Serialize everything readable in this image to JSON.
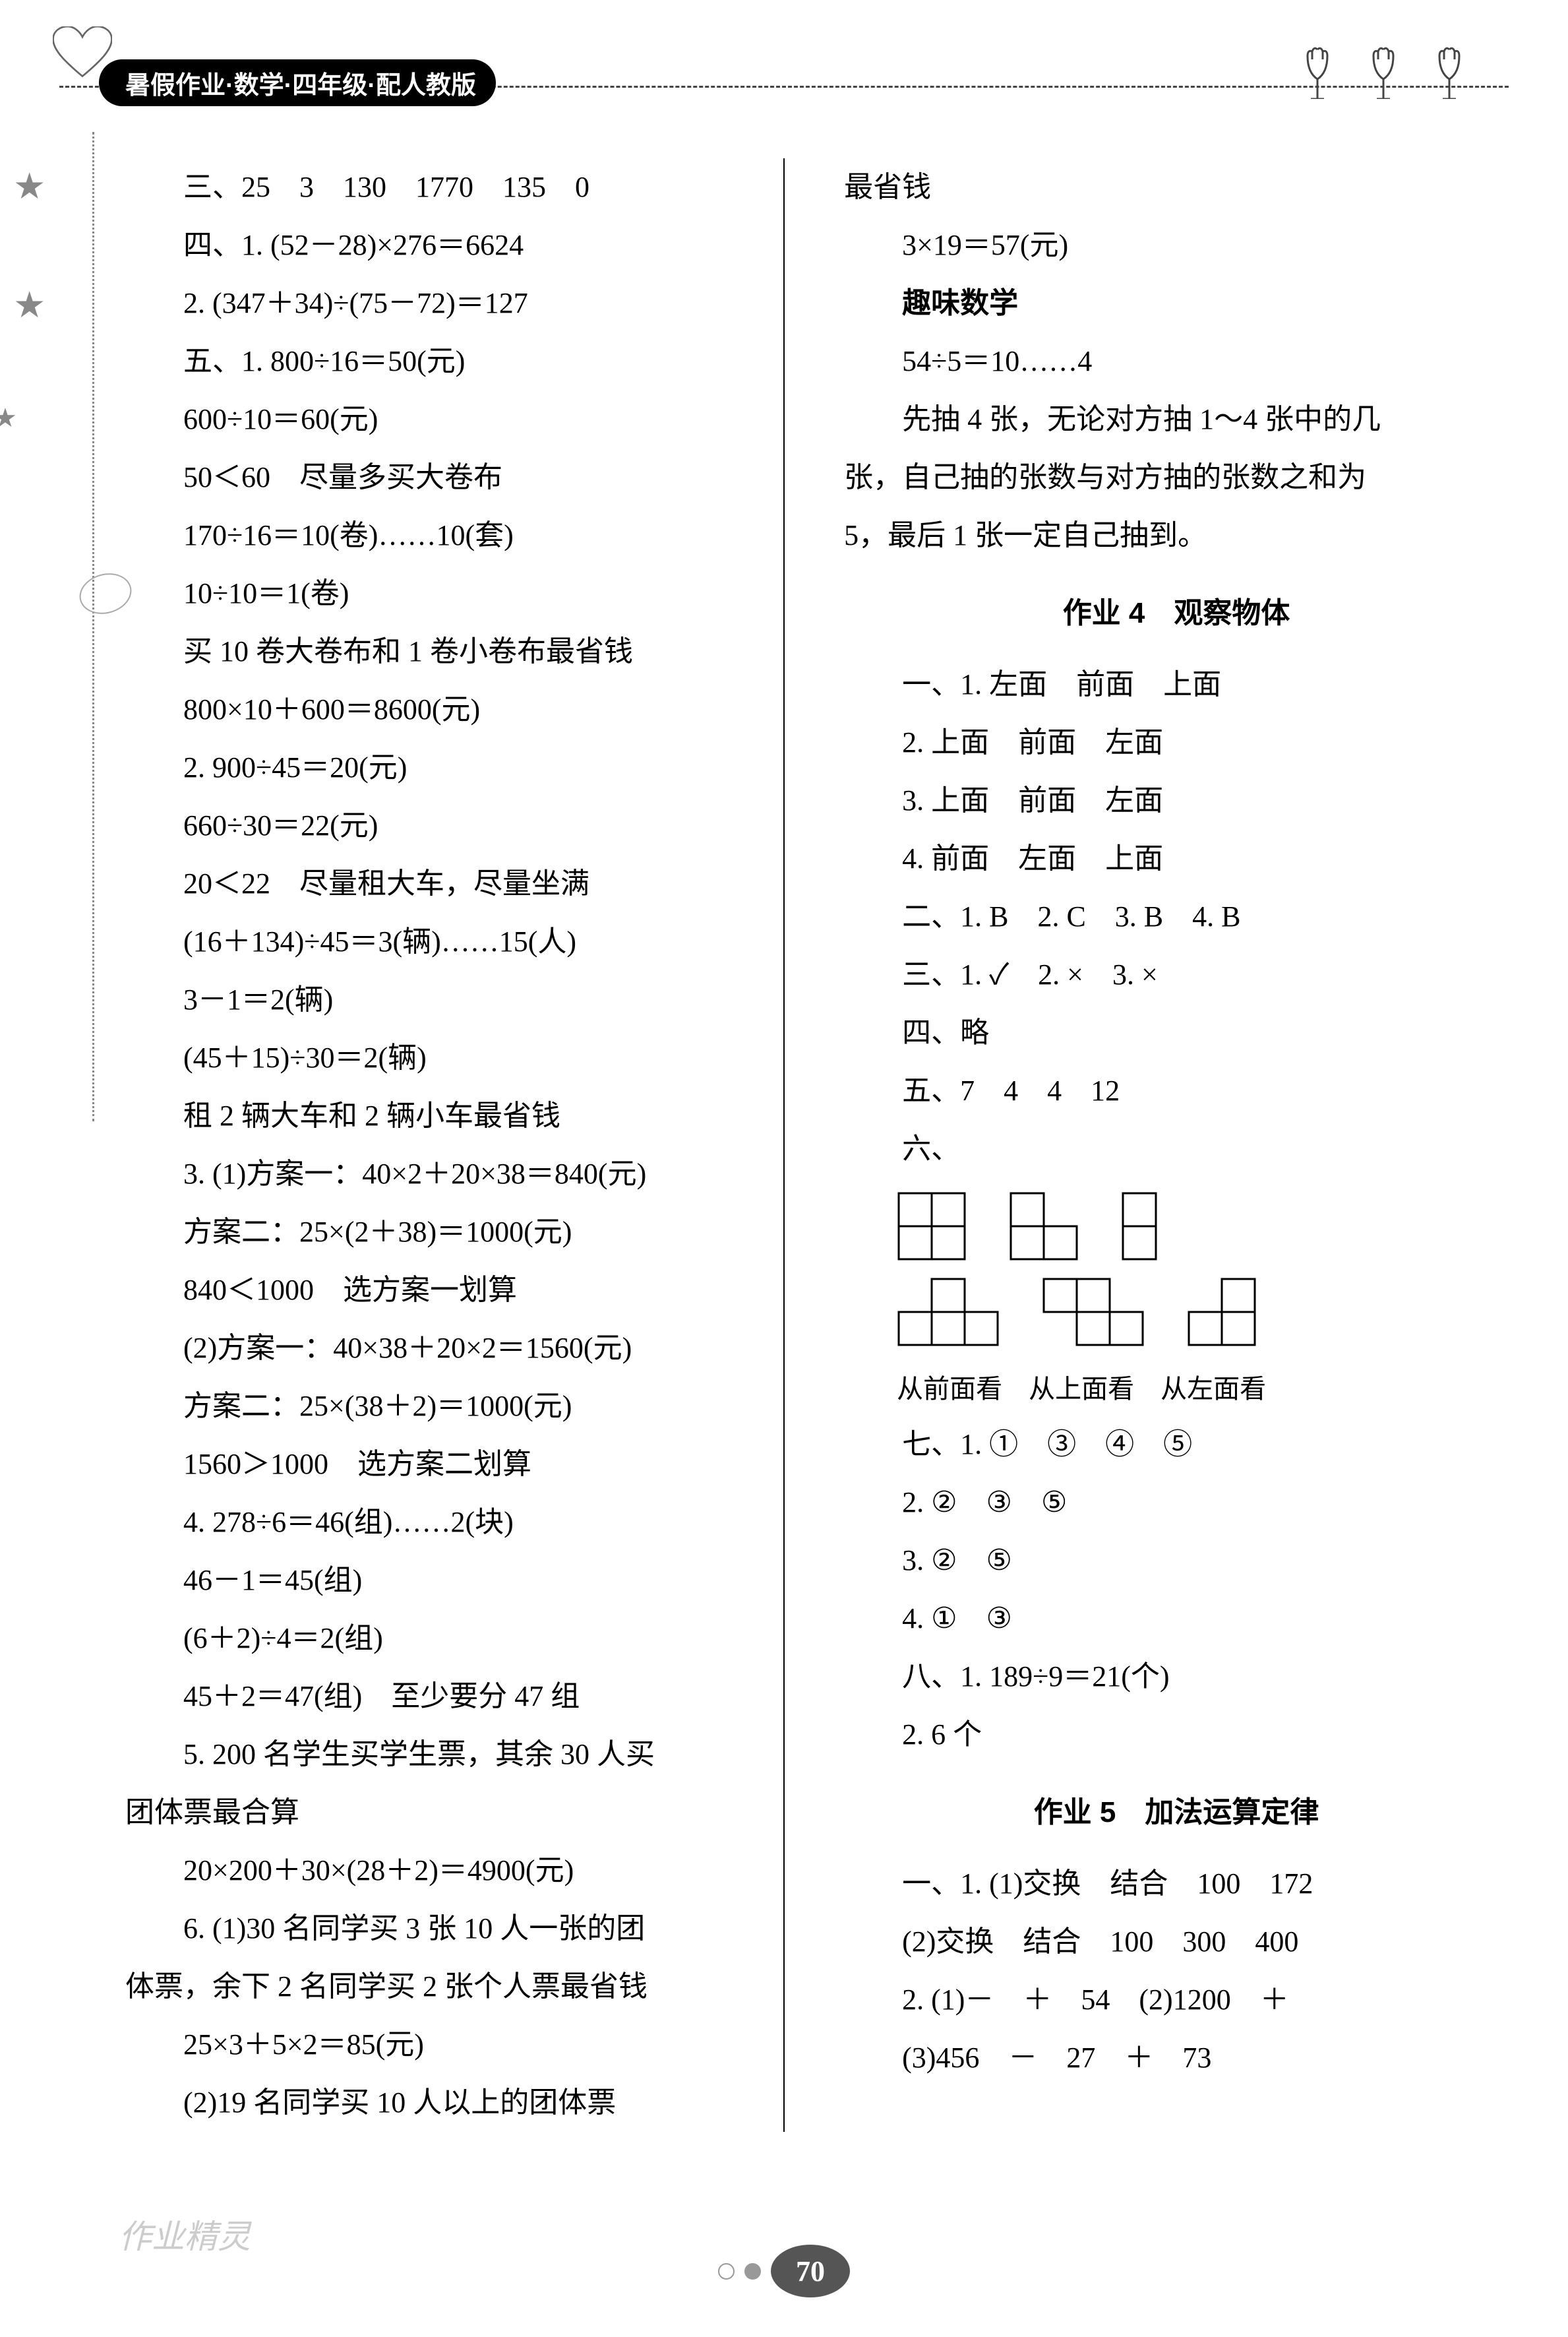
{
  "header": {
    "title": "暑假作业·数学·四年级·配人教版"
  },
  "left_column": {
    "lines": [
      {
        "text": "三、25　3　130　1770　135　0",
        "indent": true
      },
      {
        "text": "四、1. (52－28)×276＝6624",
        "indent": true
      },
      {
        "text": "2. (347＋34)÷(75－72)＝127",
        "indent": true
      },
      {
        "text": "五、1. 800÷16＝50(元)",
        "indent": true
      },
      {
        "text": "600÷10＝60(元)",
        "indent": true
      },
      {
        "text": "50＜60　尽量多买大卷布",
        "indent": true
      },
      {
        "text": "170÷16＝10(卷)……10(套)",
        "indent": true
      },
      {
        "text": "10÷10＝1(卷)",
        "indent": true
      },
      {
        "text": "买 10 卷大卷布和 1 卷小卷布最省钱",
        "indent": true
      },
      {
        "text": "800×10＋600＝8600(元)",
        "indent": true
      },
      {
        "text": "2. 900÷45＝20(元)",
        "indent": true
      },
      {
        "text": "660÷30＝22(元)",
        "indent": true
      },
      {
        "text": "20＜22　尽量租大车，尽量坐满",
        "indent": true
      },
      {
        "text": "(16＋134)÷45＝3(辆)……15(人)",
        "indent": true
      },
      {
        "text": "3－1＝2(辆)",
        "indent": true
      },
      {
        "text": "(45＋15)÷30＝2(辆)",
        "indent": true
      },
      {
        "text": "租 2 辆大车和 2 辆小车最省钱",
        "indent": true
      },
      {
        "text": "3. (1)方案一：40×2＋20×38＝840(元)",
        "indent": true
      },
      {
        "text": "方案二：25×(2＋38)＝1000(元)",
        "indent": true
      },
      {
        "text": "840＜1000　选方案一划算",
        "indent": true
      },
      {
        "text": "(2)方案一：40×38＋20×2＝1560(元)",
        "indent": true
      },
      {
        "text": "方案二：25×(38＋2)＝1000(元)",
        "indent": true
      },
      {
        "text": "1560＞1000　选方案二划算",
        "indent": true
      },
      {
        "text": "4. 278÷6＝46(组)……2(块)",
        "indent": true
      },
      {
        "text": "46－1＝45(组)",
        "indent": true
      },
      {
        "text": "(6＋2)÷4＝2(组)",
        "indent": true
      },
      {
        "text": "45＋2＝47(组)　至少要分 47 组",
        "indent": true
      },
      {
        "text": "5. 200 名学生买学生票，其余 30 人买",
        "indent": true
      },
      {
        "text": "团体票最合算",
        "indent": false
      },
      {
        "text": "20×200＋30×(28＋2)＝4900(元)",
        "indent": true
      },
      {
        "text": "6. (1)30 名同学买 3 张 10 人一张的团",
        "indent": true
      },
      {
        "text": "体票，余下 2 名同学买 2 张个人票最省钱",
        "indent": false
      },
      {
        "text": "25×3＋5×2＝85(元)",
        "indent": true
      },
      {
        "text": "(2)19 名同学买 10 人以上的团体票",
        "indent": true
      }
    ]
  },
  "right_column": {
    "top_lines": [
      {
        "text": "最省钱",
        "indent": false
      },
      {
        "text": "3×19＝57(元)",
        "indent": true
      },
      {
        "text": "趣味数学",
        "indent": true,
        "bold": true
      },
      {
        "text": "54÷5＝10……4",
        "indent": true
      },
      {
        "text": "先抽 4 张，无论对方抽 1～4 张中的几",
        "indent": true
      },
      {
        "text": "张，自己抽的张数与对方抽的张数之和为",
        "indent": false
      },
      {
        "text": "5，最后 1 张一定自己抽到。",
        "indent": false
      }
    ],
    "section4_title": "作业 4　观察物体",
    "section4_lines": [
      {
        "text": "一、1. 左面　前面　上面",
        "indent": true
      },
      {
        "text": "2. 上面　前面　左面",
        "indent": true
      },
      {
        "text": "3. 上面　前面　左面",
        "indent": true
      },
      {
        "text": "4. 前面　左面　上面",
        "indent": true
      },
      {
        "text": "二、1. B　2. C　3. B　4. B",
        "indent": true
      },
      {
        "text": "三、1. ✓　2. ×　3. ×",
        "indent": true
      },
      {
        "text": "四、略",
        "indent": true
      },
      {
        "text": "五、7　4　4　12",
        "indent": true
      },
      {
        "text": "六、",
        "indent": true
      }
    ],
    "shape_labels": [
      "从前面看",
      "从上面看",
      "从左面看"
    ],
    "section4_after": [
      {
        "text": "七、1. ①　③　④　⑤",
        "indent": true
      },
      {
        "text": "2. ②　③　⑤",
        "indent": true
      },
      {
        "text": "3. ②　⑤",
        "indent": true
      },
      {
        "text": "4. ①　③",
        "indent": true
      },
      {
        "text": "八、1. 189÷9＝21(个)",
        "indent": true
      },
      {
        "text": "2. 6 个",
        "indent": true
      }
    ],
    "section5_title": "作业 5　加法运算定律",
    "section5_lines": [
      {
        "text": "一、1. (1)交换　结合　100　172",
        "indent": true
      },
      {
        "text": "(2)交换　结合　100　300　400",
        "indent": true
      },
      {
        "text": "2. (1)－　＋　54　(2)1200　＋",
        "indent": true
      },
      {
        "text": "(3)456　－　27　＋　73",
        "indent": true
      }
    ]
  },
  "page_number": "70",
  "watermark": "作业精灵",
  "shapes": {
    "cell_size": 50,
    "stroke": "#000",
    "stroke_width": 3
  }
}
